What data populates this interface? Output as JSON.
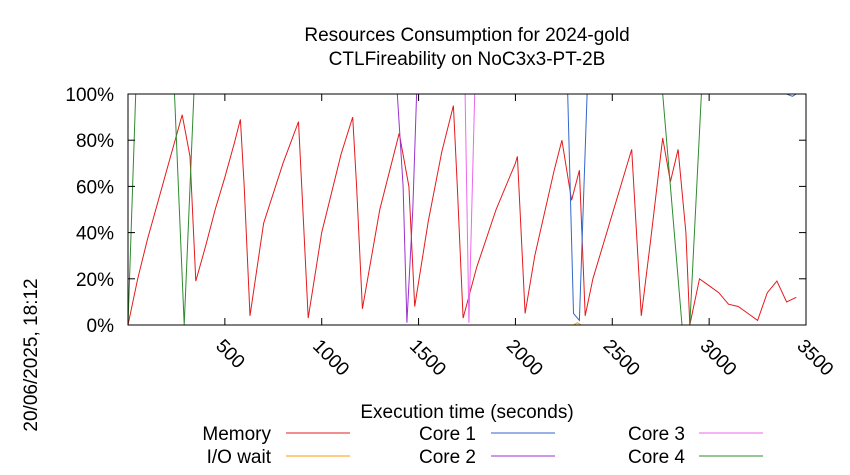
{
  "chart_data": {
    "type": "line",
    "title": "Resources Consumption for 2024-gold",
    "subtitle": "CTLFireability on NoC3x3-PT-2B",
    "xlabel": "Execution time (seconds)",
    "ylabel": "",
    "side_label": "20/06/2025, 18:12",
    "xlim": [
      0,
      3500
    ],
    "ylim": [
      0,
      100
    ],
    "x_ticks": [
      500,
      1000,
      1500,
      2000,
      2500,
      3000,
      3500
    ],
    "y_ticks": [
      0,
      20,
      40,
      60,
      80,
      100
    ],
    "y_tick_labels": [
      "0%",
      "20%",
      "40%",
      "60%",
      "80%",
      "100%"
    ],
    "grid": false,
    "legend_position": "bottom",
    "series": [
      {
        "name": "Memory",
        "color": "#e41a1c",
        "points": [
          [
            0,
            0
          ],
          [
            50,
            20
          ],
          [
            100,
            37
          ],
          [
            150,
            52
          ],
          [
            200,
            67
          ],
          [
            250,
            82
          ],
          [
            280,
            91
          ],
          [
            320,
            73
          ],
          [
            350,
            19
          ],
          [
            400,
            34
          ],
          [
            450,
            50
          ],
          [
            500,
            64
          ],
          [
            550,
            79
          ],
          [
            580,
            89
          ],
          [
            600,
            60
          ],
          [
            630,
            4
          ],
          [
            700,
            44
          ],
          [
            800,
            70
          ],
          [
            880,
            88
          ],
          [
            900,
            55
          ],
          [
            930,
            3
          ],
          [
            1000,
            40
          ],
          [
            1100,
            74
          ],
          [
            1160,
            90
          ],
          [
            1180,
            60
          ],
          [
            1210,
            7
          ],
          [
            1300,
            50
          ],
          [
            1400,
            83
          ],
          [
            1450,
            60
          ],
          [
            1480,
            8
          ],
          [
            1550,
            45
          ],
          [
            1620,
            75
          ],
          [
            1680,
            95
          ],
          [
            1700,
            60
          ],
          [
            1730,
            3
          ],
          [
            1800,
            25
          ],
          [
            1900,
            50
          ],
          [
            2000,
            70
          ],
          [
            2010,
            73
          ],
          [
            2050,
            5
          ],
          [
            2100,
            30
          ],
          [
            2200,
            67
          ],
          [
            2240,
            80
          ],
          [
            2290,
            54
          ],
          [
            2330,
            67
          ],
          [
            2360,
            4
          ],
          [
            2400,
            20
          ],
          [
            2500,
            48
          ],
          [
            2600,
            76
          ],
          [
            2650,
            4
          ],
          [
            2700,
            38
          ],
          [
            2760,
            81
          ],
          [
            2800,
            62
          ],
          [
            2840,
            76
          ],
          [
            2880,
            40
          ],
          [
            2900,
            0
          ],
          [
            2950,
            20
          ],
          [
            3000,
            17
          ],
          [
            3050,
            14
          ],
          [
            3100,
            9
          ],
          [
            3150,
            8
          ],
          [
            3200,
            5
          ],
          [
            3250,
            2
          ],
          [
            3300,
            14
          ],
          [
            3350,
            19
          ],
          [
            3400,
            10
          ],
          [
            3450,
            12
          ]
        ]
      },
      {
        "name": "I/O wait",
        "color": "#ff9900",
        "points": [
          [
            0,
            0
          ],
          [
            2300,
            0
          ],
          [
            2320,
            1
          ],
          [
            2340,
            0
          ],
          [
            3450,
            0
          ]
        ]
      },
      {
        "name": "Core 1",
        "color": "#3366cc",
        "points": [
          [
            2240,
            100
          ],
          [
            2270,
            100
          ],
          [
            2300,
            5
          ],
          [
            2330,
            2
          ],
          [
            2370,
            100
          ],
          [
            3400,
            100
          ],
          [
            3430,
            99
          ],
          [
            3450,
            100
          ]
        ]
      },
      {
        "name": "Core 2",
        "color": "#9933cc",
        "points": [
          [
            1390,
            100
          ],
          [
            1420,
            60
          ],
          [
            1440,
            1
          ],
          [
            1470,
            50
          ],
          [
            1490,
            100
          ]
        ]
      },
      {
        "name": "Core 3",
        "color": "#ee66ee",
        "points": [
          [
            250,
            100
          ],
          [
            330,
            100
          ],
          [
            1690,
            100
          ],
          [
            1740,
            100
          ],
          [
            1760,
            1
          ],
          [
            1790,
            100
          ],
          [
            2800,
            100
          ],
          [
            2890,
            100
          ]
        ]
      },
      {
        "name": "Core 4",
        "color": "#2e8b2e",
        "points": [
          [
            0,
            0
          ],
          [
            40,
            100
          ],
          [
            240,
            100
          ],
          [
            290,
            0
          ],
          [
            340,
            100
          ],
          [
            2760,
            100
          ],
          [
            2860,
            0
          ],
          [
            2900,
            0
          ],
          [
            2960,
            100
          ],
          [
            3450,
            100
          ]
        ]
      }
    ]
  }
}
